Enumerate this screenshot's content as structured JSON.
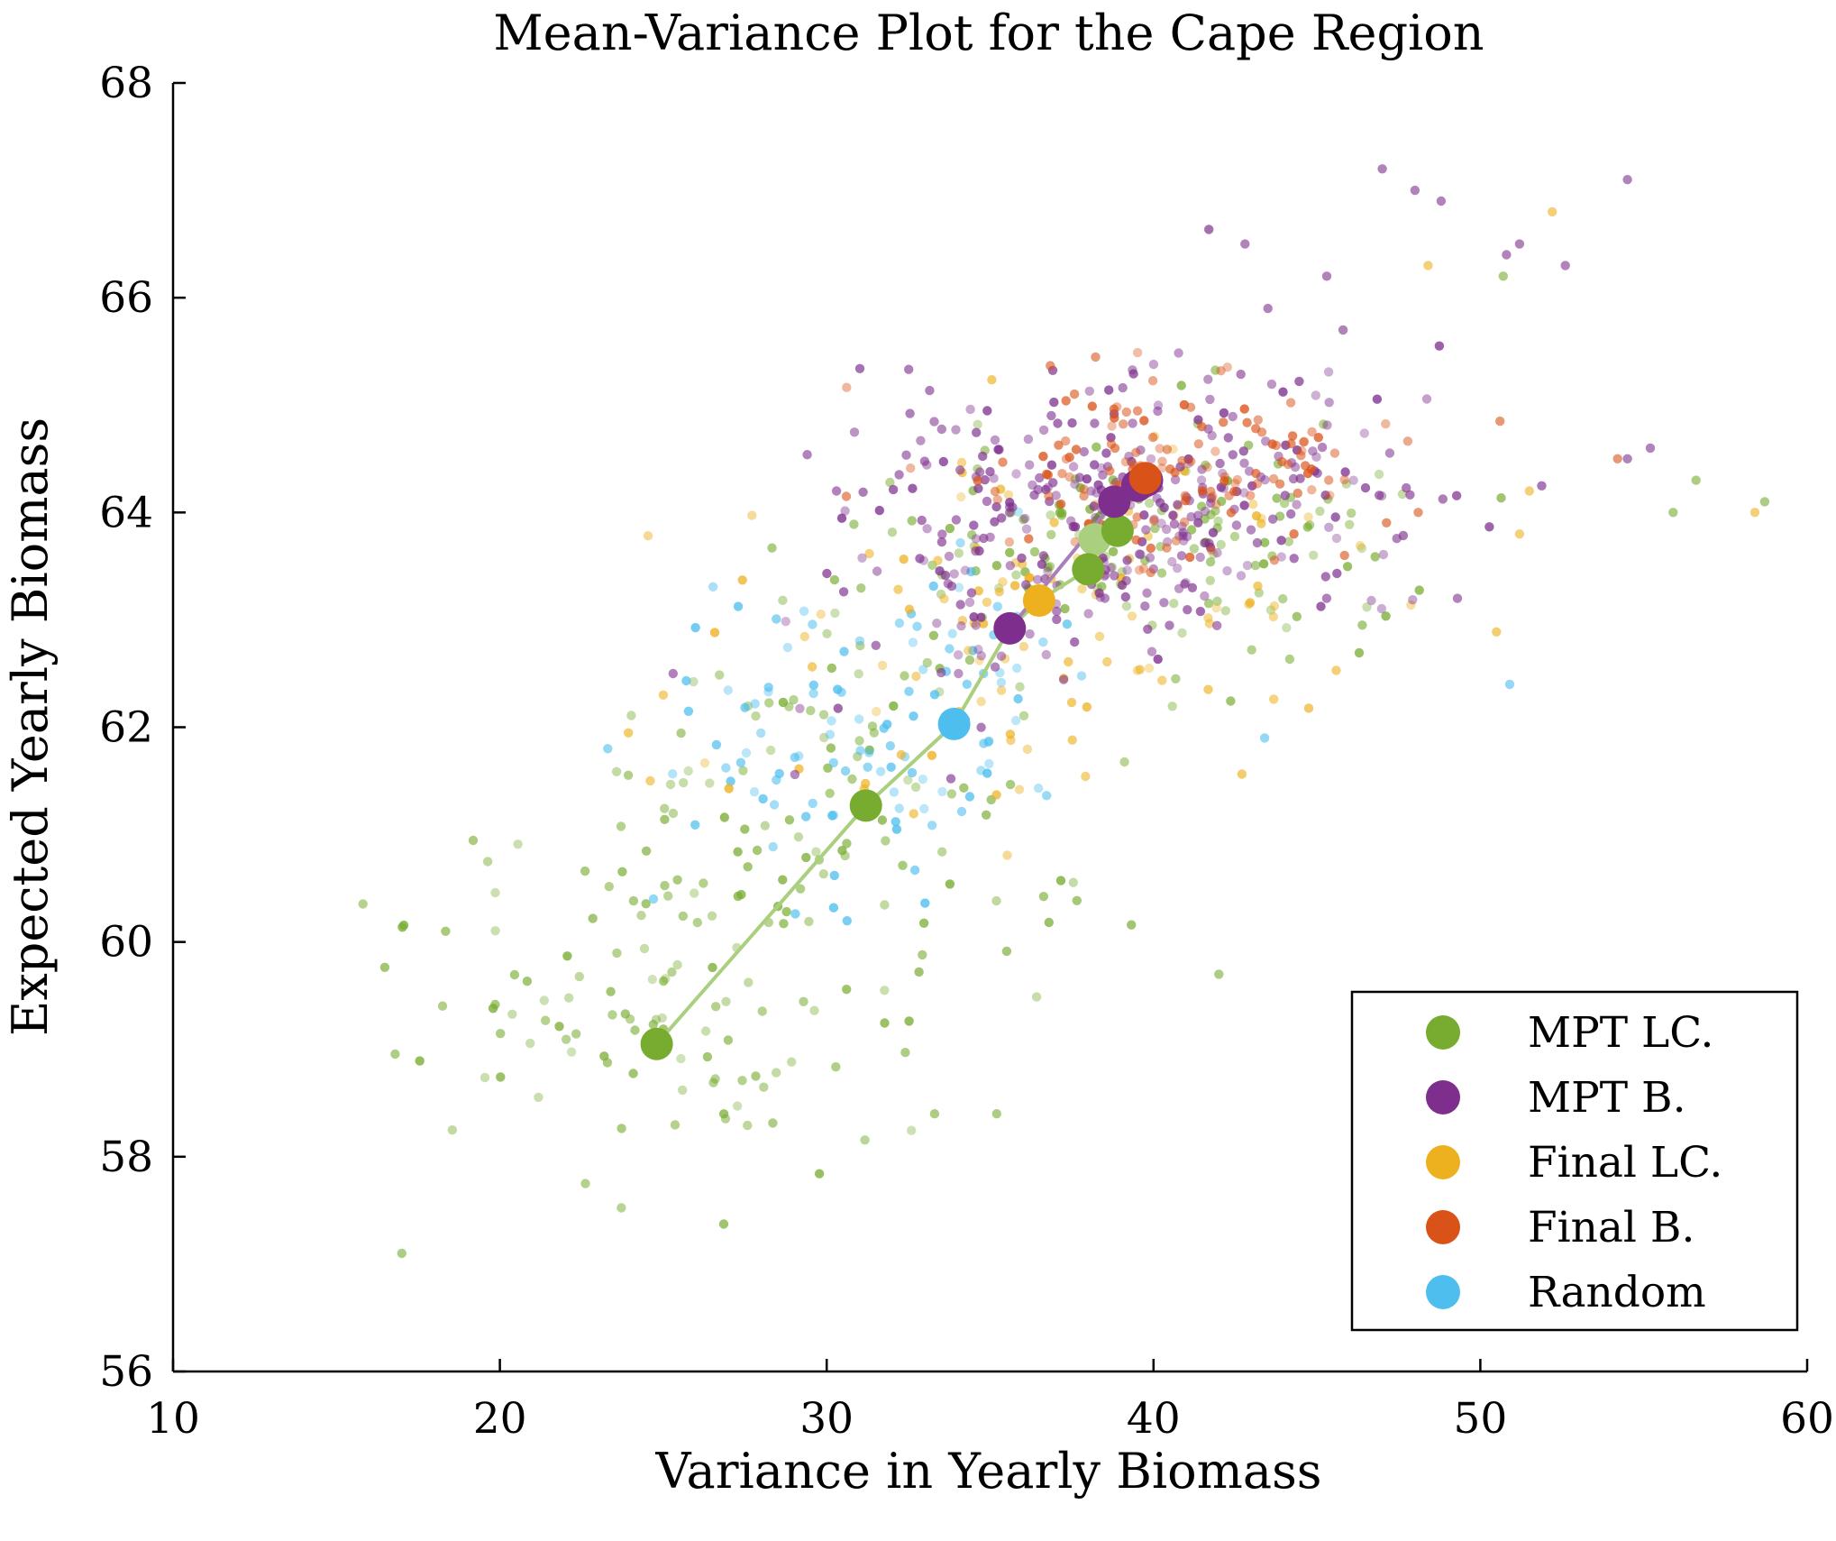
{
  "chart_data": {
    "type": "scatter",
    "title": "Mean-Variance Plot for the Cape Region",
    "xlabel": "Variance in Yearly Biomass",
    "ylabel": "Expected Yearly Biomass",
    "xlim": [
      10,
      60
    ],
    "ylim": [
      56,
      68
    ],
    "xticks": [
      "10",
      "20",
      "30",
      "40",
      "50",
      "60"
    ],
    "yticks": [
      "56",
      "58",
      "60",
      "62",
      "64",
      "66",
      "68"
    ],
    "grid": false,
    "legend_position": "bottom-right",
    "series": [
      {
        "name": "MPT LC.",
        "color": "#77AC30",
        "highlight": [
          [
            24.8,
            59.05
          ],
          [
            31.2,
            61.27
          ],
          [
            38.0,
            63.47
          ],
          [
            38.9,
            63.83
          ]
        ],
        "highlight_light": [
          [
            38.2,
            63.75
          ]
        ],
        "frontier": [
          [
            24.8,
            59.05
          ],
          [
            31.2,
            61.27
          ],
          [
            33.9,
            62.03
          ],
          [
            35.6,
            62.92
          ],
          [
            36.5,
            63.18
          ],
          [
            38.0,
            63.47
          ],
          [
            38.2,
            63.75
          ]
        ],
        "clusters": [
          {
            "cx": 24,
            "cy": 59.5,
            "sx": 3.5,
            "sy": 0.9,
            "n": 110,
            "seed": 11
          },
          {
            "cx": 31,
            "cy": 61.5,
            "sx": 3.5,
            "sy": 0.9,
            "n": 90,
            "seed": 12
          },
          {
            "cx": 37,
            "cy": 63.5,
            "sx": 3.5,
            "sy": 0.6,
            "n": 90,
            "seed": 13
          },
          {
            "cx": 43,
            "cy": 63.8,
            "sx": 3.5,
            "sy": 0.5,
            "n": 60,
            "seed": 14
          }
        ],
        "outliers": [
          [
            17.0,
            57.1
          ],
          [
            42.0,
            59.7
          ],
          [
            33.3,
            58.4
          ],
          [
            35.2,
            58.4
          ],
          [
            55.9,
            64.0
          ],
          [
            56.6,
            64.3
          ],
          [
            58.7,
            64.1
          ],
          [
            50.7,
            66.2
          ]
        ]
      },
      {
        "name": "MPT B.",
        "color": "#7E2F8E",
        "highlight": [
          [
            35.6,
            62.92
          ],
          [
            38.8,
            64.1
          ],
          [
            39.5,
            64.25
          ],
          [
            39.8,
            64.3
          ]
        ],
        "frontier": [
          [
            35.6,
            62.92
          ],
          [
            38.8,
            64.1
          ],
          [
            39.8,
            64.3
          ]
        ],
        "clusters": [
          {
            "cx": 38,
            "cy": 64.1,
            "sx": 3.5,
            "sy": 0.65,
            "n": 230,
            "seed": 21
          },
          {
            "cx": 44,
            "cy": 64.2,
            "sx": 2.8,
            "sy": 0.55,
            "n": 80,
            "seed": 22
          },
          {
            "cx": 34,
            "cy": 62.9,
            "sx": 3.0,
            "sy": 0.6,
            "n": 40,
            "seed": 23
          }
        ],
        "outliers": [
          [
            47.0,
            67.2
          ],
          [
            54.5,
            67.1
          ],
          [
            48.8,
            66.9
          ],
          [
            50.8,
            66.4
          ],
          [
            51.2,
            66.5
          ],
          [
            52.6,
            66.3
          ],
          [
            45.3,
            66.2
          ],
          [
            45.8,
            65.7
          ],
          [
            43.5,
            65.9
          ],
          [
            42.8,
            66.5
          ],
          [
            49.3,
            63.2
          ],
          [
            54.5,
            64.5
          ],
          [
            55.2,
            64.6
          ],
          [
            25.3,
            62.5
          ],
          [
            30.3,
            64.2
          ],
          [
            48.0,
            67.0
          ]
        ]
      },
      {
        "name": "Final LC.",
        "color": "#EDB120",
        "highlight": [
          [
            36.5,
            63.18
          ]
        ],
        "frontier": [],
        "clusters": [
          {
            "cx": 38,
            "cy": 63.2,
            "sx": 4.0,
            "sy": 0.8,
            "n": 80,
            "seed": 31
          },
          {
            "cx": 33,
            "cy": 62.0,
            "sx": 4.0,
            "sy": 0.9,
            "n": 30,
            "seed": 32
          }
        ],
        "outliers": [
          [
            52.2,
            66.8
          ],
          [
            48.4,
            66.3
          ],
          [
            58.4,
            64.0
          ],
          [
            51.5,
            64.2
          ],
          [
            24.6,
            61.5
          ],
          [
            25.0,
            62.3
          ],
          [
            51.2,
            63.8
          ]
        ]
      },
      {
        "name": "Final B.",
        "color": "#D95319",
        "highlight": [
          [
            39.75,
            64.32
          ]
        ],
        "frontier": [],
        "clusters": [
          {
            "cx": 40,
            "cy": 64.3,
            "sx": 2.8,
            "sy": 0.45,
            "n": 110,
            "seed": 41
          },
          {
            "cx": 44,
            "cy": 64.4,
            "sx": 1.5,
            "sy": 0.35,
            "n": 30,
            "seed": 42
          }
        ],
        "outliers": [
          [
            50.6,
            64.85
          ],
          [
            54.2,
            64.5
          ],
          [
            48.1,
            64.0
          ],
          [
            30.6,
            64.15
          ]
        ]
      },
      {
        "name": "Random",
        "color": "#4DBEEE",
        "highlight": [
          [
            33.9,
            62.03
          ]
        ],
        "frontier": [],
        "clusters": [
          {
            "cx": 31,
            "cy": 62.0,
            "sx": 3.2,
            "sy": 0.7,
            "n": 110,
            "seed": 51
          }
        ],
        "outliers": [
          [
            23.3,
            61.8
          ],
          [
            24.7,
            60.4
          ],
          [
            50.9,
            62.4
          ],
          [
            43.4,
            61.9
          ]
        ]
      }
    ]
  }
}
